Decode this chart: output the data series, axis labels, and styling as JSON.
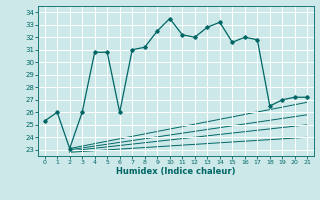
{
  "xlabel": "Humidex (Indice chaleur)",
  "ylabel": "",
  "bg_color": "#cce8e8",
  "grid_color": "#ffffff",
  "line_color": "#006666",
  "xlim": [
    -0.5,
    21.5
  ],
  "ylim": [
    22.5,
    34.5
  ],
  "yticks": [
    23,
    24,
    25,
    26,
    27,
    28,
    29,
    30,
    31,
    32,
    33,
    34
  ],
  "xticks": [
    0,
    1,
    2,
    3,
    4,
    5,
    6,
    7,
    8,
    9,
    10,
    11,
    12,
    13,
    14,
    15,
    16,
    17,
    18,
    19,
    20,
    21
  ],
  "main_line": {
    "x": [
      0,
      1,
      2,
      3,
      4,
      5,
      6,
      7,
      8,
      9,
      10,
      11,
      12,
      13,
      14,
      15,
      16,
      17,
      18,
      19,
      20,
      21
    ],
    "y": [
      25.3,
      26.0,
      23.1,
      26.0,
      30.8,
      30.8,
      26.0,
      31.0,
      31.2,
      32.5,
      33.5,
      32.2,
      32.0,
      32.8,
      33.2,
      31.6,
      32.0,
      31.8,
      26.5,
      27.0,
      27.2,
      27.2
    ]
  },
  "diag_lines": [
    {
      "x": [
        2,
        21
      ],
      "y": [
        23.1,
        26.8
      ]
    },
    {
      "x": [
        2,
        21
      ],
      "y": [
        23.0,
        25.8
      ]
    },
    {
      "x": [
        2,
        21
      ],
      "y": [
        22.9,
        25.0
      ]
    },
    {
      "x": [
        2,
        21
      ],
      "y": [
        22.8,
        24.0
      ]
    }
  ]
}
